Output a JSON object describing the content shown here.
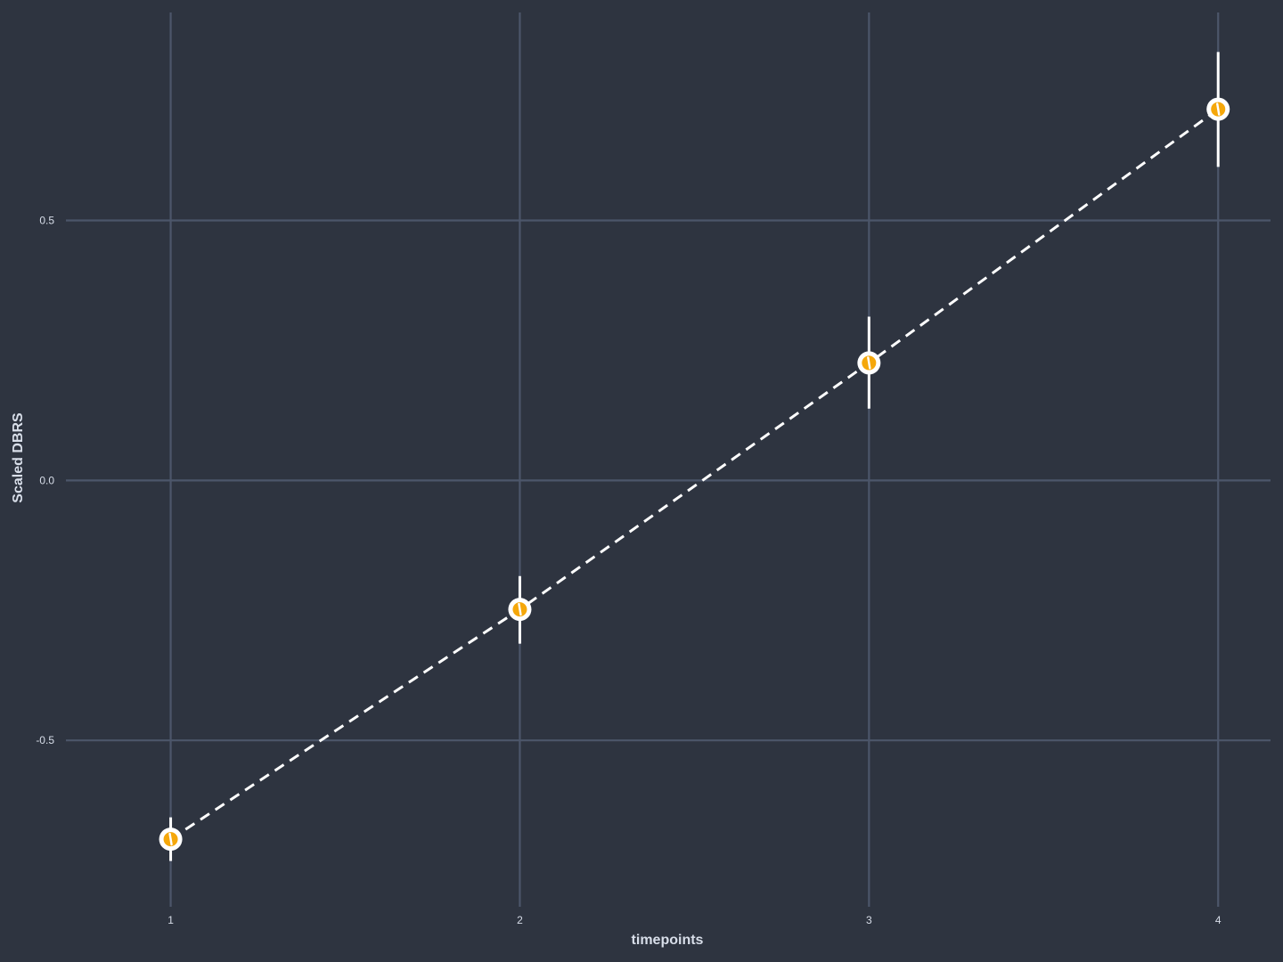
{
  "chart_data": {
    "type": "line",
    "xlabel": "timepoints",
    "ylabel": "Scaled DBRS",
    "x": [
      1,
      2,
      3,
      4
    ],
    "x_ticks": [
      "1",
      "2",
      "3",
      "4"
    ],
    "y_ticks": [
      -0.5,
      0.0,
      0.5
    ],
    "y_tick_labels": [
      "-0.5",
      "0.0",
      "0.5"
    ],
    "xlim": [
      0.7,
      4.15
    ],
    "ylim": [
      -0.82,
      0.9
    ],
    "series": [
      {
        "values": [
          -0.69,
          -0.248,
          0.226,
          0.714
        ],
        "error_low": [
          -0.732,
          -0.314,
          0.138,
          0.603
        ],
        "error_high": [
          -0.648,
          -0.184,
          0.315,
          0.824
        ]
      }
    ],
    "grid": true,
    "line_style": "dashed",
    "colors": {
      "background": "#2e3440",
      "grid": "#4c566a",
      "text": "#d8dee9",
      "line": "#ffffff",
      "marker_fill": "#f5a70a",
      "marker_edge": "#ffffff"
    }
  }
}
